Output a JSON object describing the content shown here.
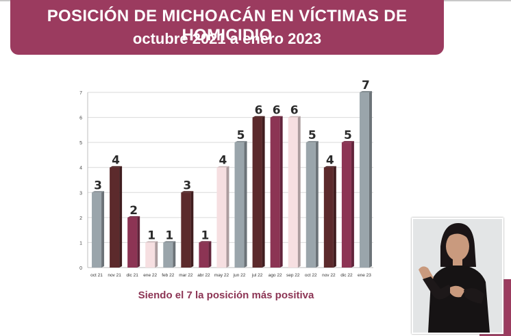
{
  "header": {
    "title": "POSICIÓN DE MICHOACÁN EN VÍCTIMAS DE HOMICIDIO",
    "subtitle": "octubre 2021 a enero 2023"
  },
  "caption": "Siendo el 7 la posición más positiva",
  "chart_data": {
    "type": "bar",
    "title": "POSICIÓN DE MICHOACÁN EN VÍCTIMAS DE HOMICIDIO",
    "subtitle": "octubre 2021 a enero 2023",
    "xlabel": "",
    "ylabel": "",
    "ylim": [
      0,
      7
    ],
    "yticks": [
      "0",
      "1",
      "2",
      "3",
      "4",
      "5",
      "6",
      "7"
    ],
    "grid": true,
    "categories": [
      "oct 21",
      "nov 21",
      "dic 21",
      "ene 22",
      "feb 22",
      "mar 22",
      "abr 22",
      "may 22",
      "jun 22",
      "jul 22",
      "ago 22",
      "sep 22",
      "oct 22",
      "nov 22",
      "dic 22",
      "ene 23"
    ],
    "values": [
      3,
      4,
      2,
      1,
      1,
      3,
      1,
      4,
      5,
      6,
      6,
      6,
      5,
      4,
      5,
      7
    ],
    "value_labels": [
      "3",
      "4",
      "2",
      "1",
      "1",
      "3",
      "1",
      "4",
      "5",
      "6",
      "6",
      "6",
      "5",
      "4",
      "5",
      "7"
    ],
    "bar_colors": [
      "#9aa5ab",
      "#5c2a2c",
      "#8c3454",
      "#f6dfe1",
      "#9aa5ab",
      "#5c2a2c",
      "#8c3454",
      "#f6dfe1",
      "#9aa5ab",
      "#5c2a2c",
      "#8c3454",
      "#f6dfe1",
      "#9aa5ab",
      "#5c2a2c",
      "#8c3454",
      "#9aa5ab"
    ]
  },
  "colors": {
    "banner": "#9b3b5f",
    "caption": "#8c3454"
  }
}
